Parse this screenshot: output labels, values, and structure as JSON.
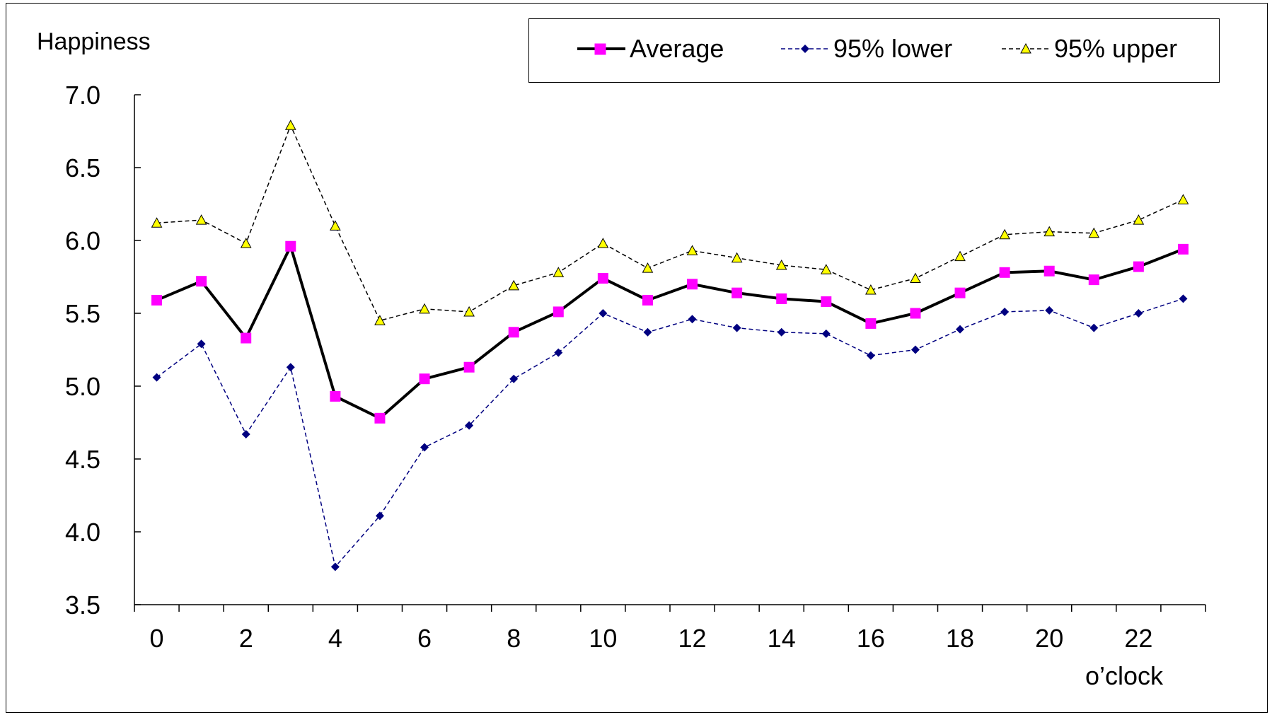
{
  "chart_data": {
    "type": "line",
    "ylabel": "Happiness",
    "xlabel": "o’clock",
    "ylim": [
      3.5,
      7.0
    ],
    "yticks": [
      "3.5",
      "4.0",
      "4.5",
      "5.0",
      "5.5",
      "6.0",
      "6.5",
      "7.0"
    ],
    "x": [
      0,
      1,
      2,
      3,
      4,
      5,
      6,
      7,
      8,
      9,
      10,
      11,
      12,
      13,
      14,
      15,
      16,
      17,
      18,
      19,
      20,
      21,
      22,
      23
    ],
    "xtick_labels": [
      "0",
      "2",
      "4",
      "6",
      "8",
      "10",
      "12",
      "14",
      "16",
      "18",
      "20",
      "22"
    ],
    "grid": false,
    "legend_position": "top-right",
    "series": [
      {
        "name": "Average",
        "color": "#000000",
        "marker_color": "#ff00ff",
        "line_style": "solid",
        "marker": "square",
        "values": [
          5.59,
          5.72,
          5.33,
          5.96,
          4.93,
          4.78,
          5.05,
          5.13,
          5.37,
          5.51,
          5.74,
          5.59,
          5.7,
          5.64,
          5.6,
          5.58,
          5.43,
          5.5,
          5.64,
          5.78,
          5.79,
          5.73,
          5.82,
          5.94
        ]
      },
      {
        "name": "95% lower",
        "color": "#000080",
        "marker_color": "#000080",
        "line_style": "dashed",
        "marker": "diamond",
        "values": [
          5.06,
          5.29,
          4.67,
          5.13,
          3.76,
          4.11,
          4.58,
          4.73,
          5.05,
          5.23,
          5.5,
          5.37,
          5.46,
          5.4,
          5.37,
          5.36,
          5.21,
          5.25,
          5.39,
          5.51,
          5.52,
          5.4,
          5.5,
          5.6
        ]
      },
      {
        "name": "95% upper",
        "color": "#000000",
        "marker_color": "#ffff00",
        "line_style": "dashed",
        "marker": "triangle",
        "values": [
          6.12,
          6.14,
          5.98,
          6.79,
          6.1,
          5.45,
          5.53,
          5.51,
          5.69,
          5.78,
          5.98,
          5.81,
          5.93,
          5.88,
          5.83,
          5.8,
          5.66,
          5.74,
          5.89,
          6.04,
          6.06,
          6.05,
          6.14,
          6.28
        ]
      }
    ]
  }
}
